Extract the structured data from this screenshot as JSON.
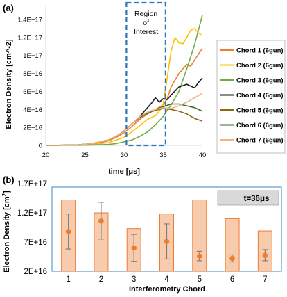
{
  "chart_data": [
    {
      "type": "line",
      "panel_label": "(a)",
      "xlabel": "time [μs]",
      "ylabel": "Electron Density [cm^-2]",
      "xlim": [
        20,
        40
      ],
      "ylim": [
        0,
        1.4e+17
      ],
      "x_ticks": [
        "20",
        "25",
        "30",
        "35",
        "40"
      ],
      "y_ticks": [
        "0",
        "2E+16",
        "4E+16",
        "6E+16",
        "8E+16",
        "1E+17",
        "1.2E+17",
        "1.4E+17"
      ],
      "annotation": {
        "lines": [
          "Region",
          "of",
          "Interest"
        ],
        "x_range": [
          30.3,
          35.3
        ]
      },
      "legend_position": "right",
      "series": [
        {
          "name": "Chord 1 (6gun)",
          "color": "#ED7D31",
          "x": [
            20,
            24,
            26,
            28,
            29,
            30,
            31,
            32,
            33,
            34,
            35,
            35.5,
            36,
            37,
            38,
            38.5,
            39,
            40
          ],
          "y": [
            0,
            300000000000000.0,
            1500000000000000.0,
            5000000000000000.0,
            9000000000000000.0,
            1.4e+16,
            2.1e+16,
            2.9e+16,
            3.5e+16,
            4e+16,
            4.5e+16,
            5.2e+16,
            6.5e+16,
            8e+16,
            9e+16,
            8.8e+16,
            9.5e+16,
            1.08e+17
          ]
        },
        {
          "name": "Chord 2 (6gun)",
          "color": "#FFC000",
          "x": [
            20,
            24,
            26,
            28,
            29,
            30,
            31,
            32,
            33,
            34,
            34.5,
            35,
            35.5,
            36,
            36.5,
            37,
            37.5,
            38,
            38.5,
            39,
            39.5,
            40
          ],
          "y": [
            0,
            200000000000000.0,
            1000000000000000.0,
            3000000000000000.0,
            6000000000000000.0,
            9000000000000000.0,
            1.5e+16,
            2.2e+16,
            2.9e+16,
            3.3e+16,
            3.8e+16,
            4.6e+16,
            7.5e+16,
            1.05e+17,
            1.2e+17,
            1.14e+17,
            1.13e+17,
            1.2e+17,
            1.28e+17,
            1.3e+17,
            1.25e+17,
            1.22e+17
          ]
        },
        {
          "name": "Chord 3 (6gun)",
          "color": "#70AD47",
          "x": [
            20,
            25,
            28,
            29,
            30,
            31,
            32,
            33,
            34,
            35,
            35.5,
            36,
            37,
            38,
            39,
            40
          ],
          "y": [
            0,
            200000000000000.0,
            1000000000000000.0,
            2000000000000000.0,
            4000000000000000.0,
            6000000000000000.0,
            1e+16,
            1.5e+16,
            2.3e+16,
            3.2e+16,
            3.9e+16,
            4.5e+16,
            6e+16,
            8.5e+16,
            1.12e+17,
            1.45e+17
          ]
        },
        {
          "name": "Chord 4 (6gun)",
          "color": "#1a1a1a",
          "x": [
            20,
            24,
            26,
            28,
            29,
            30,
            31,
            32,
            33,
            33.5,
            34,
            34.5,
            35,
            35.5,
            36,
            37,
            38,
            39,
            39.5,
            40
          ],
          "y": [
            0,
            500000000000000.0,
            2000000000000000.0,
            6000000000000000.0,
            1e+16,
            1.6e+16,
            2.4e+16,
            3.2e+16,
            4.2e+16,
            4.7e+16,
            5.3e+16,
            4.8e+16,
            5.2e+16,
            5.1e+16,
            5.6e+16,
            6.5e+16,
            6.8e+16,
            6.4e+16,
            7e+16,
            7.5e+16
          ]
        },
        {
          "name": "Chord 5 (6gun)",
          "color": "#8B6914",
          "x": [
            20,
            24,
            26,
            28,
            29,
            30,
            31,
            32,
            33,
            34,
            35,
            36,
            37,
            38,
            39,
            40
          ],
          "y": [
            0,
            500000000000000.0,
            2000000000000000.0,
            6000000000000000.0,
            1e+16,
            1.6e+16,
            2.4e+16,
            3.1e+16,
            3.6e+16,
            3.9e+16,
            4.1e+16,
            4e+16,
            3.8e+16,
            3.5e+16,
            3e+16,
            2.7e+16
          ]
        },
        {
          "name": "Chord 6 (6gun)",
          "color": "#3A6B26",
          "x": [
            20,
            24,
            26,
            28,
            29,
            30,
            31,
            32,
            33,
            34,
            35,
            36,
            37,
            38,
            39,
            40
          ],
          "y": [
            0,
            500000000000000.0,
            2000000000000000.0,
            6000000000000000.0,
            1e+16,
            1.6e+16,
            2.4e+16,
            3.1e+16,
            3.6e+16,
            4e+16,
            4.3e+16,
            4.6e+16,
            4.6e+16,
            4.4e+16,
            4.2e+16,
            3.8e+16
          ]
        },
        {
          "name": "Chord 7 (6gun)",
          "color": "#F4B183",
          "x": [
            20,
            24,
            26,
            28,
            29,
            30,
            31,
            32,
            33,
            34,
            35,
            36,
            37,
            38,
            39,
            40
          ],
          "y": [
            0,
            500000000000000.0,
            2000000000000000.0,
            6000000000000000.0,
            1e+16,
            1.6e+16,
            2.4e+16,
            3.2e+16,
            3.7e+16,
            4e+16,
            4.2e+16,
            4.1e+16,
            4.4e+16,
            4.8e+16,
            5.3e+16,
            5.8e+16
          ]
        }
      ]
    },
    {
      "type": "bar",
      "panel_label": "(b)",
      "annotation": "t=36μs",
      "xlabel": "Interferometry Chord",
      "ylabel": "Electron Density [cm",
      "ylabel_superscript": "2",
      "ylabel_end": "]",
      "ylim": [
        2e+16,
        1.9e+17
      ],
      "y_ticks": [
        "2E+16",
        "7E+16",
        "1.2E+17",
        "1.7E+17"
      ],
      "categories": [
        "1",
        "2",
        "3",
        "4",
        "5",
        "6",
        "7"
      ],
      "bar_color": "#F8CBAD",
      "bar_edge_color": "#ED7D31",
      "point_color": "#ED7D31",
      "errorbar_color": "#7F7F7F",
      "bars": [
        1.42e+17,
        1.2e+17,
        9.3e+16,
        1.18e+17,
        1.42e+17,
        1.1e+17,
        8.9e+16
      ],
      "points": [
        8.8e+16,
        1.06e+17,
        6e+16,
        7.1e+16,
        4.6e+16,
        4.2e+16,
        4.7e+16
      ],
      "err_low": [
        5.8e+16,
        7.5e+16,
        3.7e+16,
        4.1e+16,
        3.8e+16,
        3.6e+16,
        3.8e+16
      ],
      "err_high": [
        1.18e+17,
        1.38e+17,
        8.3e+16,
        1.01e+17,
        5.4e+16,
        4.8e+16,
        5.7e+16
      ]
    }
  ]
}
